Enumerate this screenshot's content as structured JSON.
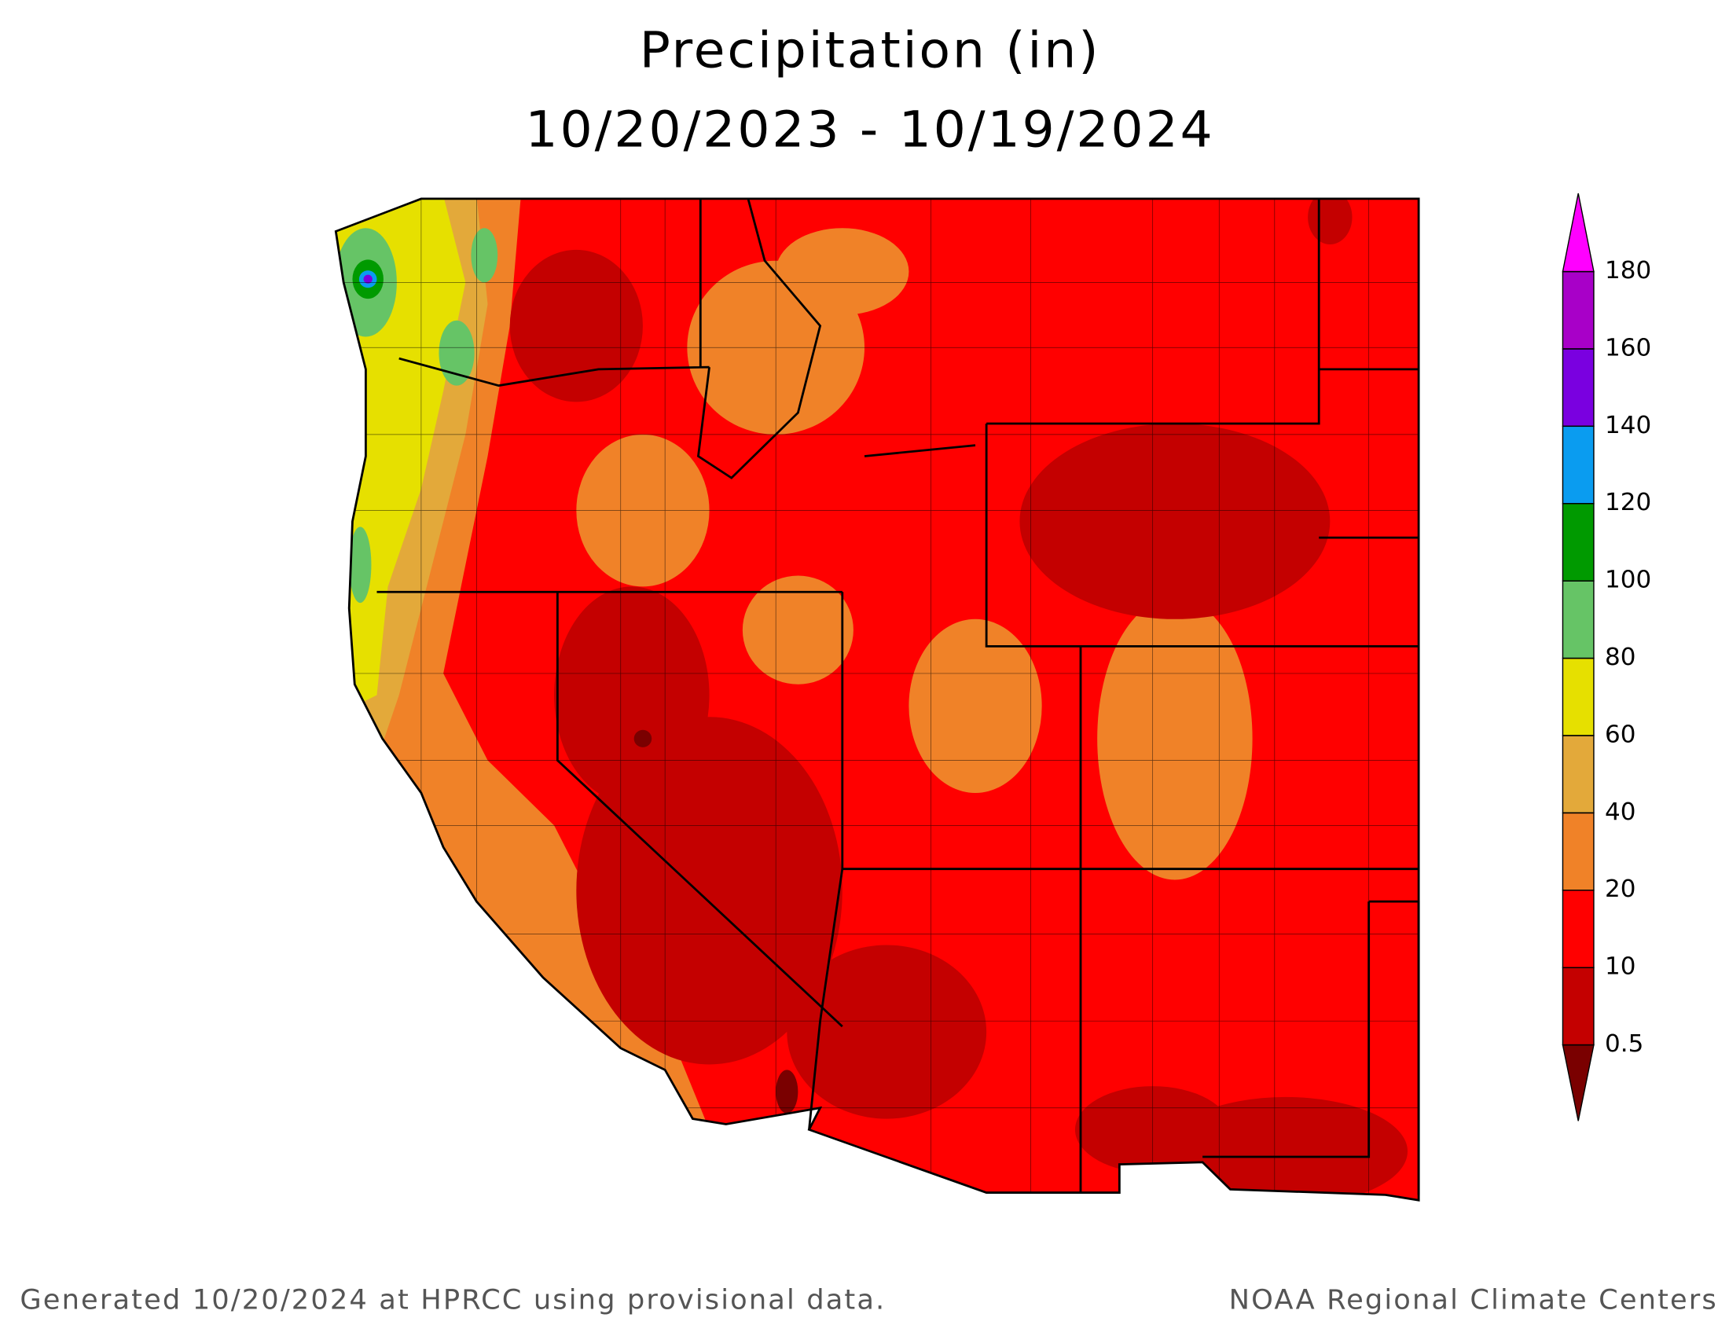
{
  "title": "Precipitation (in)",
  "subtitle": "10/20/2023 - 10/19/2024",
  "colorbar": {
    "levels": [
      0.5,
      10,
      20,
      40,
      60,
      80,
      100,
      120,
      140,
      160,
      180
    ],
    "colors": [
      "#7a0000",
      "#c40000",
      "#ff0000",
      "#f08228",
      "#e3a93a",
      "#e6e000",
      "#66c466",
      "#009a00",
      "#0a9cf0",
      "#7a00e0",
      "#a800c8",
      "#ff00ff"
    ]
  },
  "footer": {
    "left": "Generated 10/20/2024 at HPRCC using provisional data.",
    "right": "NOAA Regional Climate Centers"
  }
}
